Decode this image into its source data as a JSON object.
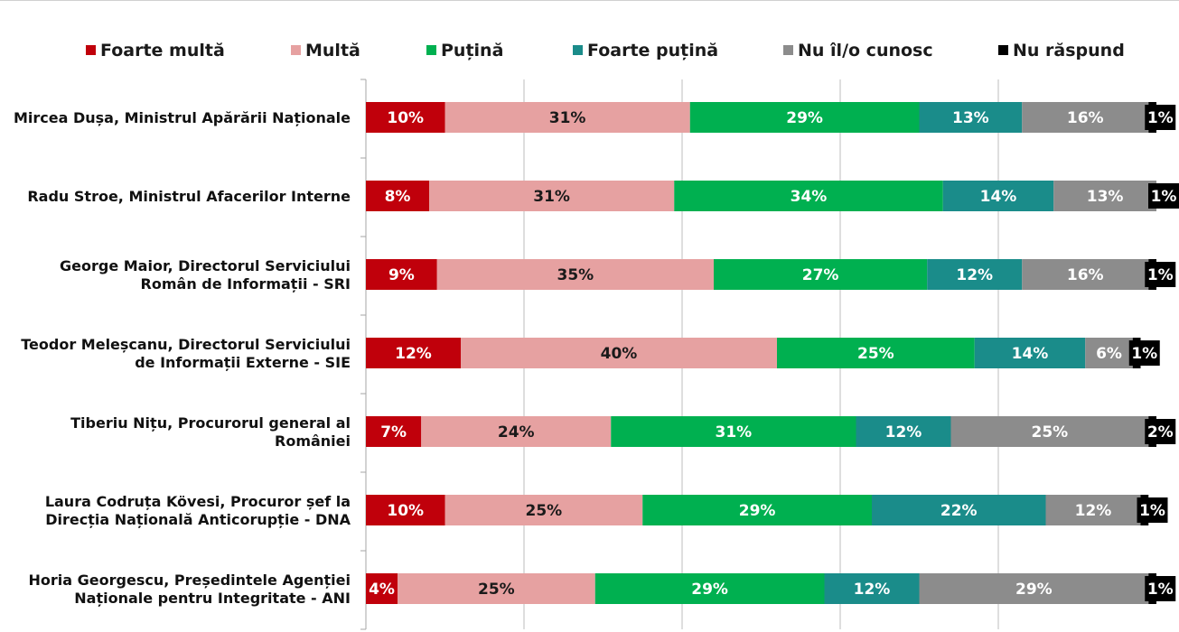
{
  "chart_data": {
    "type": "bar",
    "orientation": "horizontal",
    "stacked": true,
    "percent": true,
    "legend": "top",
    "grid": true,
    "xlim": [
      0,
      100
    ],
    "categories": [
      "Mircea Dușa, Ministrul Apărării Naționale",
      "Radu Stroe, Ministrul Afacerilor Interne",
      "George Maior, Directorul Serviciului Român de Informații - SRI",
      "Teodor Meleșcanu, Directorul Serviciului de Informații Externe - SIE",
      "Tiberiu Nițu, Procurorul general al României",
      "Laura Codruța Kövesi, Procuror șef la Direcția Națională Anticorupție - DNA",
      "Horia Georgescu, Președintele Agenției Naționale pentru Integritate - ANI"
    ],
    "category_lines": [
      [
        "Mircea Dușa, Ministrul Apărării Naționale"
      ],
      [
        "Radu Stroe, Ministrul Afacerilor Interne"
      ],
      [
        "George Maior, Directorul Serviciului",
        "Român de Informații - SRI"
      ],
      [
        "Teodor Meleșcanu, Directorul Serviciului",
        "de Informații Externe - SIE"
      ],
      [
        "Tiberiu Nițu, Procurorul general al",
        "României"
      ],
      [
        "Laura Codruța Kövesi, Procuror șef la",
        "Direcția Națională Anticorupție - DNA"
      ],
      [
        "Horia Georgescu, Președintele Agenției",
        "Naționale pentru Integritate - ANI"
      ]
    ],
    "series": [
      {
        "name": "Foarte multă",
        "color": "#c0000b",
        "label_color": "#ffffff",
        "values": [
          10,
          8,
          9,
          12,
          7,
          10,
          4
        ]
      },
      {
        "name": "Multă",
        "color": "#e6a1a1",
        "label_color": "#1a1a1a",
        "values": [
          31,
          31,
          35,
          40,
          24,
          25,
          25
        ]
      },
      {
        "name": "Puțină",
        "color": "#00b050",
        "label_color": "#ffffff",
        "values": [
          29,
          34,
          27,
          25,
          31,
          29,
          29
        ]
      },
      {
        "name": "Foarte puțină",
        "color": "#1a8c8a",
        "label_color": "#ffffff",
        "values": [
          13,
          14,
          12,
          14,
          12,
          22,
          12
        ]
      },
      {
        "name": "Nu îl/o cunosc",
        "color": "#8c8c8c",
        "label_color": "#ffffff",
        "values": [
          16,
          13,
          16,
          6,
          25,
          12,
          29
        ]
      },
      {
        "name": "Nu răspund",
        "color": "#000000",
        "label_color": "#ffffff",
        "values": [
          1,
          1,
          1,
          1,
          2,
          1,
          1
        ]
      }
    ]
  }
}
